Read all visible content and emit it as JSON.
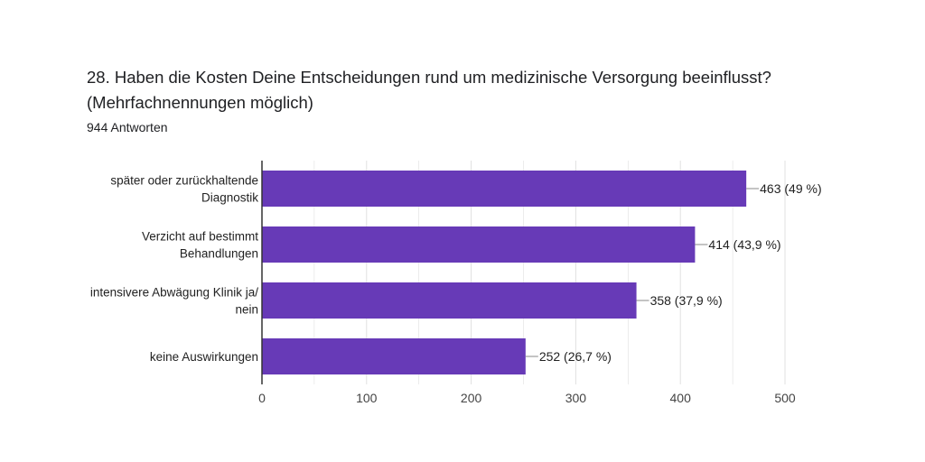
{
  "question": {
    "title": "28. Haben die Kosten Deine Entscheidungen rund um medizinische Versorgung beeinflusst? (Mehrfachnennungen möglich)",
    "responses": "944 Antworten"
  },
  "colors": {
    "bar": "#673ab7",
    "grid": "#e0e0e0",
    "axis": "#333333",
    "leader": "#888888"
  },
  "chart_data": {
    "type": "bar",
    "orientation": "horizontal",
    "categories": [
      [
        "später oder zurückhaltende",
        "Diagnostik"
      ],
      [
        "Verzicht auf bestimmt",
        "Behandlungen"
      ],
      [
        "intensivere Abwägung Klinik ja/",
        "nein"
      ],
      [
        "keine Auswirkungen"
      ]
    ],
    "values": [
      463,
      414,
      358,
      252
    ],
    "data_labels": [
      "463 (49 %)",
      "414 (43,9 %)",
      "358 (37,9 %)",
      "252 (26,7 %)"
    ],
    "xlim": [
      0,
      500
    ],
    "xticks": [
      0,
      100,
      200,
      300,
      400,
      500
    ],
    "grid": true,
    "legend": "none"
  }
}
